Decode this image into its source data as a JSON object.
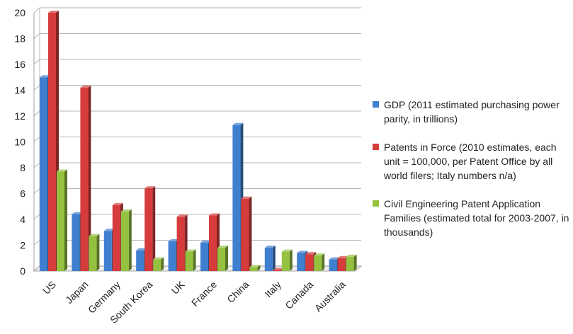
{
  "chart_data": {
    "type": "bar",
    "categories": [
      "US",
      "Japan",
      "Germany",
      "South Korea",
      "UK",
      "France",
      "China",
      "Italy",
      "Canada",
      "Australia"
    ],
    "series": [
      {
        "name": "GDP (2011 estimated purchasing power parity, in trillions)",
        "color": "#3f7fcf",
        "values": [
          15.0,
          4.4,
          3.1,
          1.6,
          2.3,
          2.2,
          11.3,
          1.8,
          1.4,
          0.9
        ]
      },
      {
        "name": "Patents in Force (2010 estimates, each unit = 100,000, per Patent Office by all world filers; Italy numbers n/a)",
        "color": "#d63c3c",
        "values": [
          20.0,
          14.2,
          5.1,
          6.4,
          4.2,
          4.3,
          5.6,
          0.0,
          1.3,
          1.0
        ]
      },
      {
        "name": "Civil Engineering Patent Application Families (estimated total for 2003-2007, in thousands)",
        "color": "#94c23f",
        "values": [
          7.7,
          2.7,
          4.6,
          0.9,
          1.5,
          1.8,
          0.3,
          1.5,
          1.2,
          1.1
        ]
      }
    ],
    "y_ticks": [
      "0",
      "2",
      "4",
      "6",
      "8",
      "10",
      "12",
      "14",
      "16",
      "18",
      "20"
    ],
    "ylim": [
      0,
      20
    ],
    "title": "",
    "xlabel": "",
    "ylabel": "",
    "grid": true,
    "legend_position": "right"
  }
}
